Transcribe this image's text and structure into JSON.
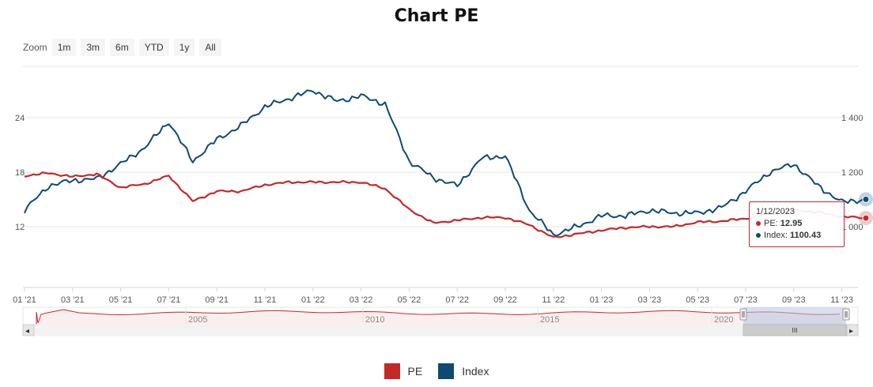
{
  "colors": {
    "pe": "#c62828",
    "index": "#0d4a73",
    "grid": "#e6e6e6",
    "navigator_mask": "#b8c4e0"
  },
  "chart_data": {
    "type": "line",
    "title": "Chart PE",
    "left_axis": {
      "ticks": [
        12,
        18,
        24
      ]
    },
    "right_axis": {
      "ticks": [
        "1 000",
        "1 200",
        "1 400"
      ]
    },
    "x_ticks": [
      "01 '21",
      "03 '21",
      "05 '21",
      "07 '21",
      "09 '21",
      "11 '21",
      "01 '22",
      "03 '22",
      "05 '22",
      "07 '22",
      "09 '22",
      "11 '22",
      "01 '23",
      "03 '23",
      "05 '23",
      "07 '23",
      "09 '23",
      "11 '23"
    ],
    "navigator_ticks": [
      "2005",
      "2010",
      "2015",
      "2020"
    ],
    "legend": [
      "PE",
      "Index"
    ],
    "series": [
      {
        "name": "PE",
        "x": [
          "2021-01",
          "2021-02",
          "2021-03",
          "2021-04",
          "2021-05",
          "2021-06",
          "2021-07",
          "2021-08",
          "2021-09",
          "2021-10",
          "2021-11",
          "2021-12",
          "2022-01",
          "2022-02",
          "2022-03",
          "2022-04",
          "2022-05",
          "2022-06",
          "2022-07",
          "2022-08",
          "2022-09",
          "2022-10",
          "2022-11",
          "2022-12",
          "2023-01",
          "2023-02",
          "2023-03",
          "2023-04",
          "2023-05",
          "2023-06",
          "2023-07",
          "2023-08",
          "2023-09",
          "2023-10",
          "2023-11",
          "2023-12"
        ],
        "values": [
          17.6,
          17.9,
          17.5,
          17.8,
          16.3,
          16.7,
          17.6,
          14.8,
          15.9,
          15.9,
          16.6,
          16.9,
          16.9,
          16.9,
          16.9,
          16.2,
          13.9,
          12.4,
          12.7,
          13.0,
          13.0,
          12.2,
          10.8,
          11.2,
          11.6,
          11.9,
          12.0,
          12.0,
          12.5,
          12.6,
          12.9,
          13.4,
          13.8,
          13.6,
          13.1,
          12.95
        ]
      },
      {
        "name": "Index",
        "x": [
          "2021-01",
          "2021-02",
          "2021-03",
          "2021-04",
          "2021-05",
          "2021-06",
          "2021-07",
          "2021-08",
          "2021-09",
          "2021-10",
          "2021-11",
          "2021-12",
          "2022-01",
          "2022-02",
          "2022-03",
          "2022-04",
          "2022-05",
          "2022-06",
          "2022-07",
          "2022-08",
          "2022-09",
          "2022-10",
          "2022-11",
          "2022-12",
          "2023-01",
          "2023-02",
          "2023-03",
          "2023-04",
          "2023-05",
          "2023-06",
          "2023-07",
          "2023-08",
          "2023-09",
          "2023-10",
          "2023-11",
          "2023-12"
        ],
        "values": [
          1060,
          1150,
          1170,
          1175,
          1230,
          1290,
          1385,
          1240,
          1320,
          1370,
          1440,
          1470,
          1500,
          1460,
          1480,
          1450,
          1240,
          1180,
          1150,
          1250,
          1260,
          1060,
          970,
          1000,
          1040,
          1040,
          1060,
          1050,
          1050,
          1070,
          1130,
          1200,
          1230,
          1150,
          1090,
          1100.43
        ]
      }
    ],
    "tooltip": {
      "date": "1/12/2023",
      "pe_label": "PE:",
      "pe_value": "12.95",
      "index_label": "Index:",
      "index_value": "1100.43"
    }
  },
  "zoom": {
    "label": "Zoom",
    "buttons": [
      "1m",
      "3m",
      "6m",
      "YTD",
      "1y",
      "All"
    ]
  },
  "scrollbar": {
    "left_arrow": "◂",
    "right_arrow": "▸",
    "grip": "III"
  }
}
